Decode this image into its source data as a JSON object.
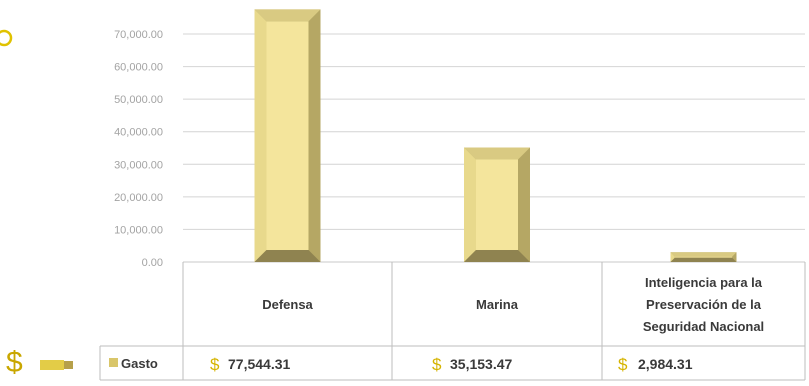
{
  "chart_data": {
    "type": "bar",
    "style": "3d-bevel",
    "categories": [
      "Defensa",
      "Marina",
      "Inteligencia para la Preservación de la Seguridad Nacional"
    ],
    "category_lines": [
      [
        "Defensa"
      ],
      [
        "Marina"
      ],
      [
        "Inteligencia para la",
        "Preservación de la",
        "Seguridad Nacional"
      ]
    ],
    "series": [
      {
        "name": "Gasto",
        "values": [
          77544.31,
          35153.47,
          2984.31
        ],
        "value_labels": [
          "77,544.31",
          "35,153.47",
          "2,984.31"
        ]
      }
    ],
    "currency_symbol": "$",
    "ylim": [
      0,
      70000
    ],
    "yticks": [
      0,
      10000,
      20000,
      30000,
      40000,
      50000,
      60000,
      70000
    ],
    "ytick_labels": [
      "0.00",
      "10,000.00",
      "20,000.00",
      "30,000.00",
      "40,000.00",
      "50,000.00",
      "60,000.00",
      "70,000.00"
    ],
    "grid": true,
    "data_table": true,
    "colors": {
      "bar_front": "#f4e59c",
      "bar_side": "#b5a764",
      "bar_top": "#d9ca82",
      "gridline": "#d4d4d4",
      "accent": "#d5b400"
    }
  },
  "decor": {
    "left_dollar": "$"
  }
}
